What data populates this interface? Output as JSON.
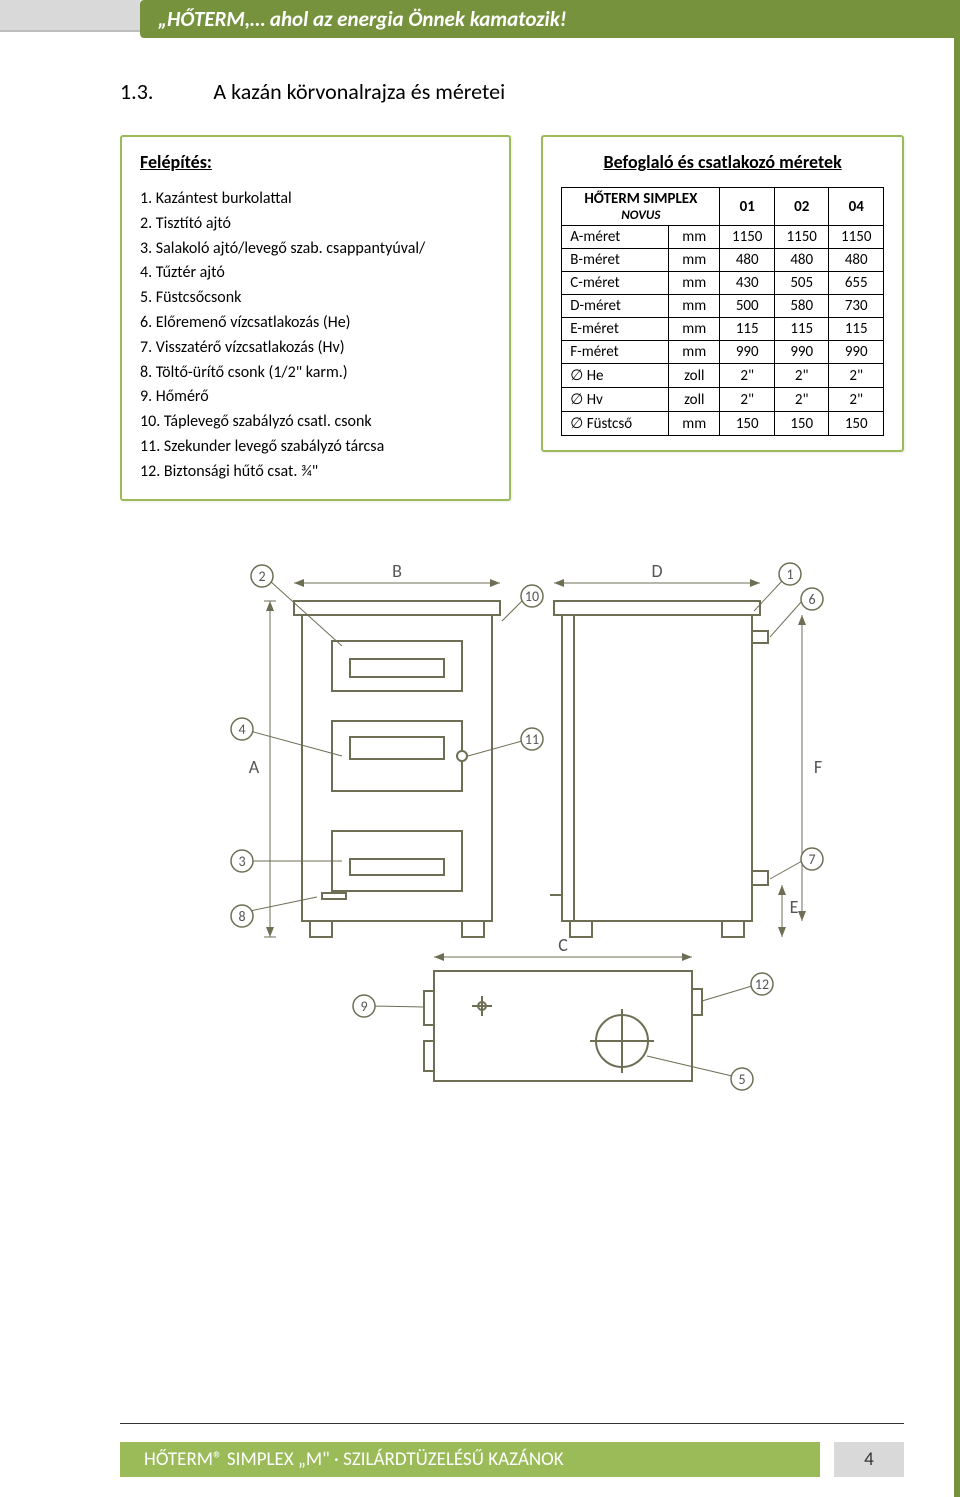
{
  "header": {
    "slogan": "„HŐTERM,… ahol az energia Önnek kamatozik!"
  },
  "section": {
    "number": "1.3.",
    "title": "A kazán körvonalrajza és méretei"
  },
  "left_card": {
    "title": "Felépítés:",
    "items": [
      "1. Kazántest burkolattal",
      "2. Tisztító ajtó",
      "3. Salakoló ajtó/levegő szab. csappantyúval/",
      "4. Tűztér ajtó",
      "5. Füstcsőcsonk",
      "6. Előremenő vízcsatlakozás (He)",
      "7. Visszatérő vízcsatlakozás (Hv)",
      "8. Töltő-ürítő csonk (1/2\" karm.)",
      "9. Hőmérő",
      "10. Táplevegő szabályzó csatl. csonk",
      "11. Szekunder levegő szabályzó tárcsa",
      "12. Biztonsági hűtő csat. ¾\""
    ]
  },
  "right_card": {
    "title": "Befoglaló és csatlakozó méretek",
    "table": {
      "header_main": "HŐTERM SIMPLEX",
      "header_sub": "NOVUS",
      "cols": [
        "01",
        "02",
        "04"
      ],
      "rows": [
        {
          "label": "A-méret",
          "unit": "mm",
          "vals": [
            "1150",
            "1150",
            "1150"
          ]
        },
        {
          "label": "B-méret",
          "unit": "mm",
          "vals": [
            "480",
            "480",
            "480"
          ]
        },
        {
          "label": "C-méret",
          "unit": "mm",
          "vals": [
            "430",
            "505",
            "655"
          ]
        },
        {
          "label": "D-méret",
          "unit": "mm",
          "vals": [
            "500",
            "580",
            "730"
          ]
        },
        {
          "label": "E-méret",
          "unit": "mm",
          "vals": [
            "115",
            "115",
            "115"
          ]
        },
        {
          "label": "F-méret",
          "unit": "mm",
          "vals": [
            "990",
            "990",
            "990"
          ]
        },
        {
          "label": "∅  He",
          "unit": "zoll",
          "vals": [
            "2\"",
            "2\"",
            "2\""
          ]
        },
        {
          "label": "∅  Hv",
          "unit": "zoll",
          "vals": [
            "2\"",
            "2\"",
            "2\""
          ]
        },
        {
          "label": "∅  Füstcső",
          "unit": "mm",
          "vals": [
            "150",
            "150",
            "150"
          ]
        }
      ]
    }
  },
  "diagram": {
    "labels": {
      "A": "A",
      "B": "B",
      "C": "C",
      "D": "D",
      "E": "E",
      "F": "F"
    },
    "callouts": [
      "1",
      "2",
      "3",
      "4",
      "5",
      "6",
      "7",
      "8",
      "9",
      "10",
      "11",
      "12"
    ],
    "stroke": "#6e6e55",
    "fill": "#ffffff"
  },
  "footer": {
    "text": "HŐTERM® SIMPLEX „M\"  ·  SZILÁRDTÜZELÉSŰ KAZÁNOK",
    "page": "4"
  },
  "colors": {
    "accent": "#76923c",
    "accent_light": "#9bbb59",
    "grey": "#d9d9d9"
  }
}
